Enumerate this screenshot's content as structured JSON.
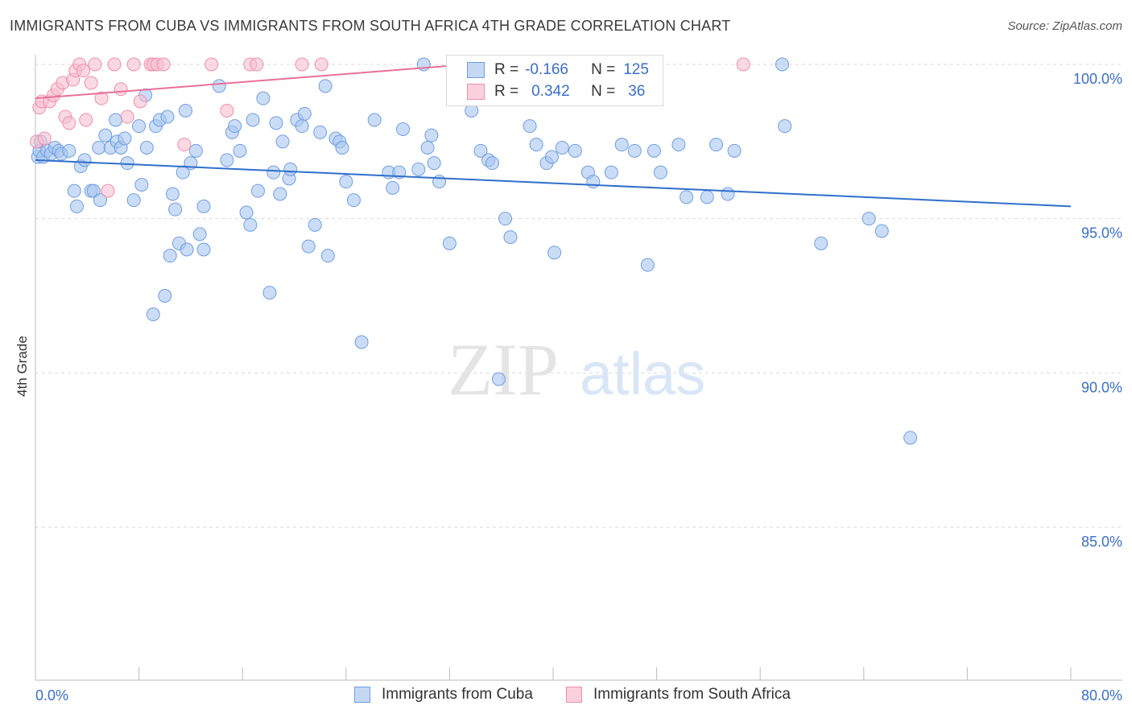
{
  "title": "IMMIGRANTS FROM CUBA VS IMMIGRANTS FROM SOUTH AFRICA 4TH GRADE CORRELATION CHART",
  "source": "Source: ZipAtlas.com",
  "watermark": {
    "zip": "ZIP",
    "atlas": "atlas"
  },
  "colors": {
    "cuba_fill": "#a9c6f0",
    "cuba_stroke": "#6f9ee0",
    "cuba_line": "#2f6fcc",
    "sa_fill": "#f7bfd0",
    "sa_stroke": "#ee8fae",
    "sa_line": "#e8709a",
    "tick_text": "#3a6fc4",
    "grid": "#d9d9d9"
  },
  "legend": {
    "rows": [
      {
        "r_label": "R =",
        "r_value": "-0.166",
        "n_label": "N =",
        "n_value": "125"
      },
      {
        "r_label": "R =",
        "r_value": "0.342",
        "n_label": "N =",
        "n_value": "36"
      }
    ]
  },
  "chart_data": {
    "type": "scatter",
    "xlabel": "",
    "ylabel": "4th Grade",
    "xlim": [
      0,
      80
    ],
    "ylim": [
      80.5,
      100.8
    ],
    "x_tick_labels": [
      "0.0%",
      "80.0%"
    ],
    "y_ticks": [
      100,
      95,
      90,
      85
    ],
    "y_tick_labels": [
      "100.0%",
      "95.0%",
      "90.0%",
      "85.0%"
    ],
    "series": [
      {
        "name": "Immigrants from Cuba",
        "trend": {
          "x": [
            0,
            80
          ],
          "y": [
            96.9,
            95.4
          ]
        },
        "points": [
          [
            0.2,
            97.0
          ],
          [
            0.3,
            97.2
          ],
          [
            0.4,
            97.5
          ],
          [
            0.6,
            97.0
          ],
          [
            0.9,
            97.2
          ],
          [
            1.2,
            97.1
          ],
          [
            1.5,
            97.3
          ],
          [
            1.8,
            97.2
          ],
          [
            2.0,
            97.1
          ],
          [
            2.6,
            97.2
          ],
          [
            3.0,
            95.9
          ],
          [
            3.2,
            95.4
          ],
          [
            3.5,
            96.7
          ],
          [
            3.8,
            96.9
          ],
          [
            4.3,
            95.9
          ],
          [
            4.5,
            95.9
          ],
          [
            4.9,
            97.3
          ],
          [
            5.0,
            95.6
          ],
          [
            5.4,
            97.7
          ],
          [
            5.8,
            97.3
          ],
          [
            6.2,
            98.2
          ],
          [
            6.3,
            97.5
          ],
          [
            6.6,
            97.3
          ],
          [
            6.9,
            97.6
          ],
          [
            7.1,
            96.8
          ],
          [
            7.6,
            95.6
          ],
          [
            8.0,
            98.0
          ],
          [
            8.2,
            96.1
          ],
          [
            8.6,
            97.3
          ],
          [
            8.5,
            99.0
          ],
          [
            9.3,
            98.0
          ],
          [
            9.6,
            98.2
          ],
          [
            10.0,
            92.5
          ],
          [
            9.1,
            91.9
          ],
          [
            10.2,
            98.3
          ],
          [
            10.4,
            93.8
          ],
          [
            10.6,
            95.8
          ],
          [
            10.8,
            95.3
          ],
          [
            11.1,
            94.2
          ],
          [
            11.4,
            96.5
          ],
          [
            11.7,
            94.0
          ],
          [
            11.6,
            98.5
          ],
          [
            12.0,
            96.8
          ],
          [
            12.4,
            97.2
          ],
          [
            12.7,
            94.5
          ],
          [
            13.0,
            94.0
          ],
          [
            13.0,
            95.4
          ],
          [
            14.2,
            99.3
          ],
          [
            14.8,
            96.9
          ],
          [
            15.2,
            97.8
          ],
          [
            15.4,
            98.0
          ],
          [
            15.8,
            97.2
          ],
          [
            16.3,
            95.2
          ],
          [
            16.6,
            94.8
          ],
          [
            16.8,
            98.2
          ],
          [
            17.2,
            95.9
          ],
          [
            17.6,
            98.9
          ],
          [
            18.1,
            92.6
          ],
          [
            18.4,
            96.5
          ],
          [
            18.6,
            98.1
          ],
          [
            18.9,
            95.8
          ],
          [
            19.1,
            97.5
          ],
          [
            19.6,
            96.3
          ],
          [
            19.7,
            96.6
          ],
          [
            20.2,
            98.2
          ],
          [
            20.6,
            98.0
          ],
          [
            20.8,
            98.4
          ],
          [
            21.1,
            94.1
          ],
          [
            21.6,
            94.8
          ],
          [
            22.0,
            97.8
          ],
          [
            22.4,
            99.3
          ],
          [
            22.6,
            93.8
          ],
          [
            23.2,
            97.6
          ],
          [
            23.5,
            97.5
          ],
          [
            23.7,
            97.3
          ],
          [
            24.0,
            96.2
          ],
          [
            24.6,
            95.6
          ],
          [
            25.2,
            91.0
          ],
          [
            26.2,
            98.2
          ],
          [
            27.3,
            96.5
          ],
          [
            27.6,
            96.0
          ],
          [
            28.1,
            96.5
          ],
          [
            28.4,
            97.9
          ],
          [
            29.6,
            96.6
          ],
          [
            30.0,
            100.0
          ],
          [
            30.3,
            97.3
          ],
          [
            30.6,
            97.7
          ],
          [
            30.8,
            96.8
          ],
          [
            31.2,
            96.2
          ],
          [
            32.0,
            94.2
          ],
          [
            33.7,
            98.5
          ],
          [
            34.4,
            97.2
          ],
          [
            35.0,
            96.9
          ],
          [
            35.3,
            96.8
          ],
          [
            35.8,
            89.8
          ],
          [
            36.3,
            95.0
          ],
          [
            36.7,
            94.4
          ],
          [
            38.2,
            98.0
          ],
          [
            38.7,
            97.4
          ],
          [
            39.5,
            96.8
          ],
          [
            39.9,
            97.0
          ],
          [
            40.1,
            93.9
          ],
          [
            40.7,
            97.3
          ],
          [
            41.7,
            97.2
          ],
          [
            42.7,
            96.5
          ],
          [
            43.1,
            96.2
          ],
          [
            44.5,
            96.5
          ],
          [
            45.3,
            97.4
          ],
          [
            46.3,
            97.2
          ],
          [
            47.3,
            93.5
          ],
          [
            47.8,
            97.2
          ],
          [
            48.3,
            96.5
          ],
          [
            49.7,
            97.4
          ],
          [
            50.3,
            95.7
          ],
          [
            51.9,
            95.7
          ],
          [
            52.6,
            97.4
          ],
          [
            53.5,
            95.8
          ],
          [
            54.0,
            97.2
          ],
          [
            57.7,
            100.0
          ],
          [
            57.9,
            98.0
          ],
          [
            60.7,
            94.2
          ],
          [
            64.4,
            95.0
          ],
          [
            65.4,
            94.6
          ],
          [
            67.6,
            87.9
          ]
        ]
      },
      {
        "name": "Immigrants from South Africa",
        "trend": {
          "x": [
            0,
            33.4
          ],
          "y": [
            98.9,
            100.0
          ]
        },
        "points": [
          [
            0.1,
            97.5
          ],
          [
            0.3,
            98.6
          ],
          [
            0.5,
            98.8
          ],
          [
            0.7,
            97.6
          ],
          [
            1.1,
            98.8
          ],
          [
            1.4,
            99.0
          ],
          [
            1.7,
            99.2
          ],
          [
            2.1,
            99.4
          ],
          [
            2.3,
            98.3
          ],
          [
            2.6,
            98.1
          ],
          [
            2.9,
            99.5
          ],
          [
            3.1,
            99.8
          ],
          [
            3.4,
            100.0
          ],
          [
            3.7,
            99.8
          ],
          [
            3.9,
            98.2
          ],
          [
            4.3,
            99.4
          ],
          [
            4.6,
            100.0
          ],
          [
            5.1,
            98.9
          ],
          [
            5.6,
            95.9
          ],
          [
            6.1,
            100.0
          ],
          [
            6.6,
            99.2
          ],
          [
            7.1,
            98.3
          ],
          [
            7.6,
            100.0
          ],
          [
            8.1,
            98.8
          ],
          [
            8.9,
            100.0
          ],
          [
            9.1,
            100.0
          ],
          [
            9.4,
            100.0
          ],
          [
            9.9,
            100.0
          ],
          [
            11.5,
            97.4
          ],
          [
            13.6,
            100.0
          ],
          [
            14.8,
            98.5
          ],
          [
            16.6,
            100.0
          ],
          [
            17.1,
            100.0
          ],
          [
            20.6,
            100.0
          ],
          [
            22.1,
            100.0
          ],
          [
            54.7,
            100.0
          ]
        ]
      }
    ]
  },
  "bottom_legend": [
    "Immigrants from Cuba",
    "Immigrants from South Africa"
  ]
}
